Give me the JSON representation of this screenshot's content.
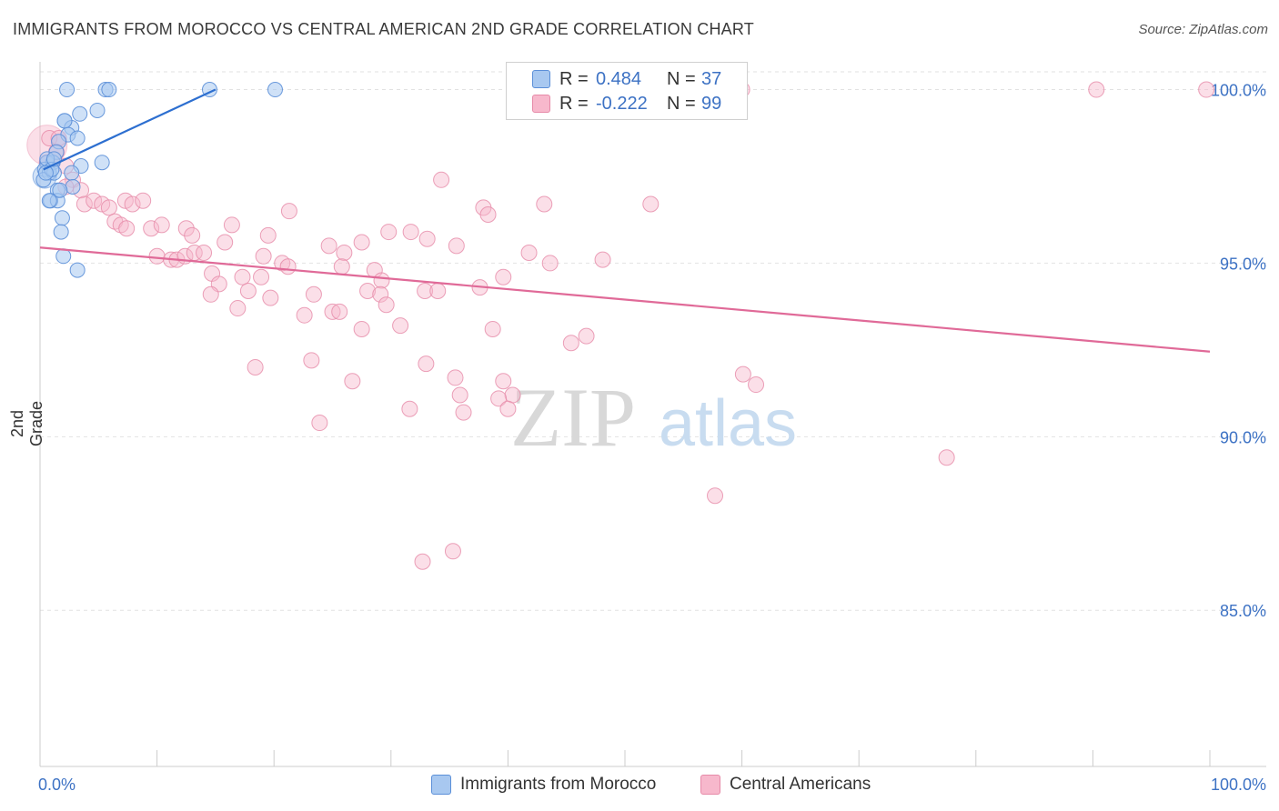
{
  "header": {
    "title": "IMMIGRANTS FROM MOROCCO VS CENTRAL AMERICAN 2ND GRADE CORRELATION CHART",
    "source": "Source: ZipAtlas.com"
  },
  "legend": {
    "rows": [
      {
        "r_label": "R =",
        "r_value": "0.484",
        "n_label": "N =",
        "n_value": "37",
        "color": "#a8c8f0"
      },
      {
        "r_label": "R =",
        "r_value": "-0.222",
        "n_label": "N =",
        "n_value": "99",
        "color": "#f7b8cc"
      }
    ]
  },
  "bottom_legend": {
    "items": [
      {
        "label": "Immigrants from Morocco",
        "color": "#a8c8f0"
      },
      {
        "label": "Central Americans",
        "color": "#f7b8cc"
      }
    ]
  },
  "watermark": {
    "zip": "ZIP",
    "atlas": "atlas"
  },
  "colors": {
    "blue": "#5b8fd8",
    "blue_fill": "#a8c8f0",
    "blue_line": "#2d6fd0",
    "pink": "#e68aa8",
    "pink_fill": "#f7b8cc",
    "pink_line": "#e06a98",
    "axis_text": "#3d72c4"
  },
  "chart_data": {
    "type": "scatter",
    "title": "IMMIGRANTS FROM MOROCCO VS CENTRAL AMERICAN 2ND GRADE CORRELATION CHART",
    "xlabel": "",
    "ylabel": "2nd Grade",
    "xlim": [
      0,
      100
    ],
    "ylim": [
      80.5,
      100.8
    ],
    "x_tick_labels": [
      "0.0%",
      "100.0%"
    ],
    "y_ticks": [
      85,
      90,
      95,
      100
    ],
    "y_tick_labels": [
      "85.0%",
      "90.0%",
      "95.0%",
      "100.0%"
    ],
    "grid": true,
    "series": [
      {
        "name": "Immigrants from Morocco",
        "r": 0.484,
        "n": 37,
        "trend": {
          "x": [
            0.3,
            15
          ],
          "y": [
            97.7,
            100.0
          ]
        },
        "points": [
          {
            "x": 2.3,
            "y": 100.0
          },
          {
            "x": 5.6,
            "y": 100.0
          },
          {
            "x": 5.9,
            "y": 100.0
          },
          {
            "x": 14.5,
            "y": 100.0
          },
          {
            "x": 20.1,
            "y": 100.0
          },
          {
            "x": 2.1,
            "y": 99.1
          },
          {
            "x": 3.4,
            "y": 99.3
          },
          {
            "x": 4.9,
            "y": 99.4
          },
          {
            "x": 2.7,
            "y": 98.9
          },
          {
            "x": 2.4,
            "y": 98.7
          },
          {
            "x": 3.2,
            "y": 98.6
          },
          {
            "x": 1.6,
            "y": 98.5
          },
          {
            "x": 1.4,
            "y": 98.2
          },
          {
            "x": 0.6,
            "y": 97.9
          },
          {
            "x": 1.1,
            "y": 97.9
          },
          {
            "x": 3.5,
            "y": 97.8
          },
          {
            "x": 5.3,
            "y": 97.9
          },
          {
            "x": 0.4,
            "y": 97.7
          },
          {
            "x": 0.8,
            "y": 97.6
          },
          {
            "x": 1.2,
            "y": 97.6
          },
          {
            "x": 2.7,
            "y": 97.6
          },
          {
            "x": 1.5,
            "y": 97.1
          },
          {
            "x": 2.8,
            "y": 97.2
          },
          {
            "x": 0.9,
            "y": 96.8
          },
          {
            "x": 1.5,
            "y": 96.8
          },
          {
            "x": 1.9,
            "y": 96.3
          },
          {
            "x": 1.8,
            "y": 95.9
          },
          {
            "x": 2.0,
            "y": 95.2
          },
          {
            "x": 3.2,
            "y": 94.8
          },
          {
            "x": 0.3,
            "y": 97.4
          },
          {
            "x": 0.6,
            "y": 98.0
          },
          {
            "x": 1.0,
            "y": 97.7
          },
          {
            "x": 0.8,
            "y": 96.8
          },
          {
            "x": 2.1,
            "y": 99.1
          },
          {
            "x": 1.2,
            "y": 98.0
          },
          {
            "x": 0.5,
            "y": 97.6
          },
          {
            "x": 1.7,
            "y": 97.1
          }
        ]
      },
      {
        "name": "Central Americans",
        "r": -0.222,
        "n": 99,
        "trend": {
          "x": [
            0,
            100
          ],
          "y": [
            95.45,
            92.45
          ]
        },
        "points": [
          {
            "x": 49.6,
            "y": 100.0
          },
          {
            "x": 60.0,
            "y": 100.0
          },
          {
            "x": 90.3,
            "y": 100.0
          },
          {
            "x": 99.7,
            "y": 100.0
          },
          {
            "x": 0.8,
            "y": 98.6
          },
          {
            "x": 1.6,
            "y": 98.6
          },
          {
            "x": 1.4,
            "y": 98.2
          },
          {
            "x": 0.6,
            "y": 97.9
          },
          {
            "x": 2.2,
            "y": 97.8
          },
          {
            "x": 2.8,
            "y": 97.4
          },
          {
            "x": 2.2,
            "y": 97.2
          },
          {
            "x": 3.5,
            "y": 97.1
          },
          {
            "x": 3.8,
            "y": 96.7
          },
          {
            "x": 4.6,
            "y": 96.8
          },
          {
            "x": 5.3,
            "y": 96.7
          },
          {
            "x": 5.9,
            "y": 96.6
          },
          {
            "x": 7.3,
            "y": 96.8
          },
          {
            "x": 7.9,
            "y": 96.7
          },
          {
            "x": 8.8,
            "y": 96.8
          },
          {
            "x": 6.4,
            "y": 96.2
          },
          {
            "x": 6.9,
            "y": 96.1
          },
          {
            "x": 7.4,
            "y": 96.0
          },
          {
            "x": 9.5,
            "y": 96.0
          },
          {
            "x": 10.4,
            "y": 96.1
          },
          {
            "x": 12.5,
            "y": 96.0
          },
          {
            "x": 13.0,
            "y": 95.8
          },
          {
            "x": 16.4,
            "y": 96.1
          },
          {
            "x": 21.3,
            "y": 96.5
          },
          {
            "x": 10.0,
            "y": 95.2
          },
          {
            "x": 11.2,
            "y": 95.1
          },
          {
            "x": 11.7,
            "y": 95.1
          },
          {
            "x": 12.4,
            "y": 95.2
          },
          {
            "x": 13.2,
            "y": 95.3
          },
          {
            "x": 14.0,
            "y": 95.3
          },
          {
            "x": 15.8,
            "y": 95.6
          },
          {
            "x": 19.5,
            "y": 95.8
          },
          {
            "x": 19.1,
            "y": 95.2
          },
          {
            "x": 20.7,
            "y": 95.0
          },
          {
            "x": 21.2,
            "y": 94.9
          },
          {
            "x": 24.7,
            "y": 95.5
          },
          {
            "x": 26.0,
            "y": 95.3
          },
          {
            "x": 27.5,
            "y": 95.6
          },
          {
            "x": 29.8,
            "y": 95.9
          },
          {
            "x": 31.7,
            "y": 95.9
          },
          {
            "x": 33.1,
            "y": 95.7
          },
          {
            "x": 35.6,
            "y": 95.5
          },
          {
            "x": 14.7,
            "y": 94.7
          },
          {
            "x": 15.3,
            "y": 94.4
          },
          {
            "x": 17.3,
            "y": 94.6
          },
          {
            "x": 18.9,
            "y": 94.6
          },
          {
            "x": 25.8,
            "y": 94.9
          },
          {
            "x": 28.6,
            "y": 94.8
          },
          {
            "x": 29.2,
            "y": 94.5
          },
          {
            "x": 14.6,
            "y": 94.1
          },
          {
            "x": 17.8,
            "y": 94.2
          },
          {
            "x": 19.7,
            "y": 94.0
          },
          {
            "x": 23.4,
            "y": 94.1
          },
          {
            "x": 28.0,
            "y": 94.2
          },
          {
            "x": 29.1,
            "y": 94.1
          },
          {
            "x": 32.9,
            "y": 94.2
          },
          {
            "x": 34.0,
            "y": 94.2
          },
          {
            "x": 37.6,
            "y": 94.3
          },
          {
            "x": 39.6,
            "y": 94.6
          },
          {
            "x": 41.8,
            "y": 95.3
          },
          {
            "x": 43.6,
            "y": 95.0
          },
          {
            "x": 48.1,
            "y": 95.1
          },
          {
            "x": 16.9,
            "y": 93.7
          },
          {
            "x": 22.6,
            "y": 93.5
          },
          {
            "x": 25.0,
            "y": 93.6
          },
          {
            "x": 25.6,
            "y": 93.6
          },
          {
            "x": 29.6,
            "y": 93.8
          },
          {
            "x": 27.5,
            "y": 93.1
          },
          {
            "x": 30.8,
            "y": 93.2
          },
          {
            "x": 38.7,
            "y": 93.1
          },
          {
            "x": 45.4,
            "y": 92.7
          },
          {
            "x": 46.7,
            "y": 92.9
          },
          {
            "x": 18.4,
            "y": 92.0
          },
          {
            "x": 23.2,
            "y": 92.2
          },
          {
            "x": 26.7,
            "y": 91.6
          },
          {
            "x": 33.0,
            "y": 92.1
          },
          {
            "x": 35.5,
            "y": 91.7
          },
          {
            "x": 35.9,
            "y": 91.2
          },
          {
            "x": 39.6,
            "y": 91.6
          },
          {
            "x": 40.4,
            "y": 91.2
          },
          {
            "x": 39.2,
            "y": 91.1
          },
          {
            "x": 40.0,
            "y": 90.8
          },
          {
            "x": 31.6,
            "y": 90.8
          },
          {
            "x": 36.2,
            "y": 90.7
          },
          {
            "x": 23.9,
            "y": 90.4
          },
          {
            "x": 60.1,
            "y": 91.8
          },
          {
            "x": 61.2,
            "y": 91.5
          },
          {
            "x": 77.5,
            "y": 89.4
          },
          {
            "x": 57.7,
            "y": 88.3
          },
          {
            "x": 35.3,
            "y": 86.7
          },
          {
            "x": 32.7,
            "y": 86.4
          },
          {
            "x": 34.3,
            "y": 97.4
          },
          {
            "x": 37.9,
            "y": 96.6
          },
          {
            "x": 38.3,
            "y": 96.4
          },
          {
            "x": 43.1,
            "y": 96.7
          },
          {
            "x": 52.2,
            "y": 96.7
          }
        ]
      }
    ]
  }
}
